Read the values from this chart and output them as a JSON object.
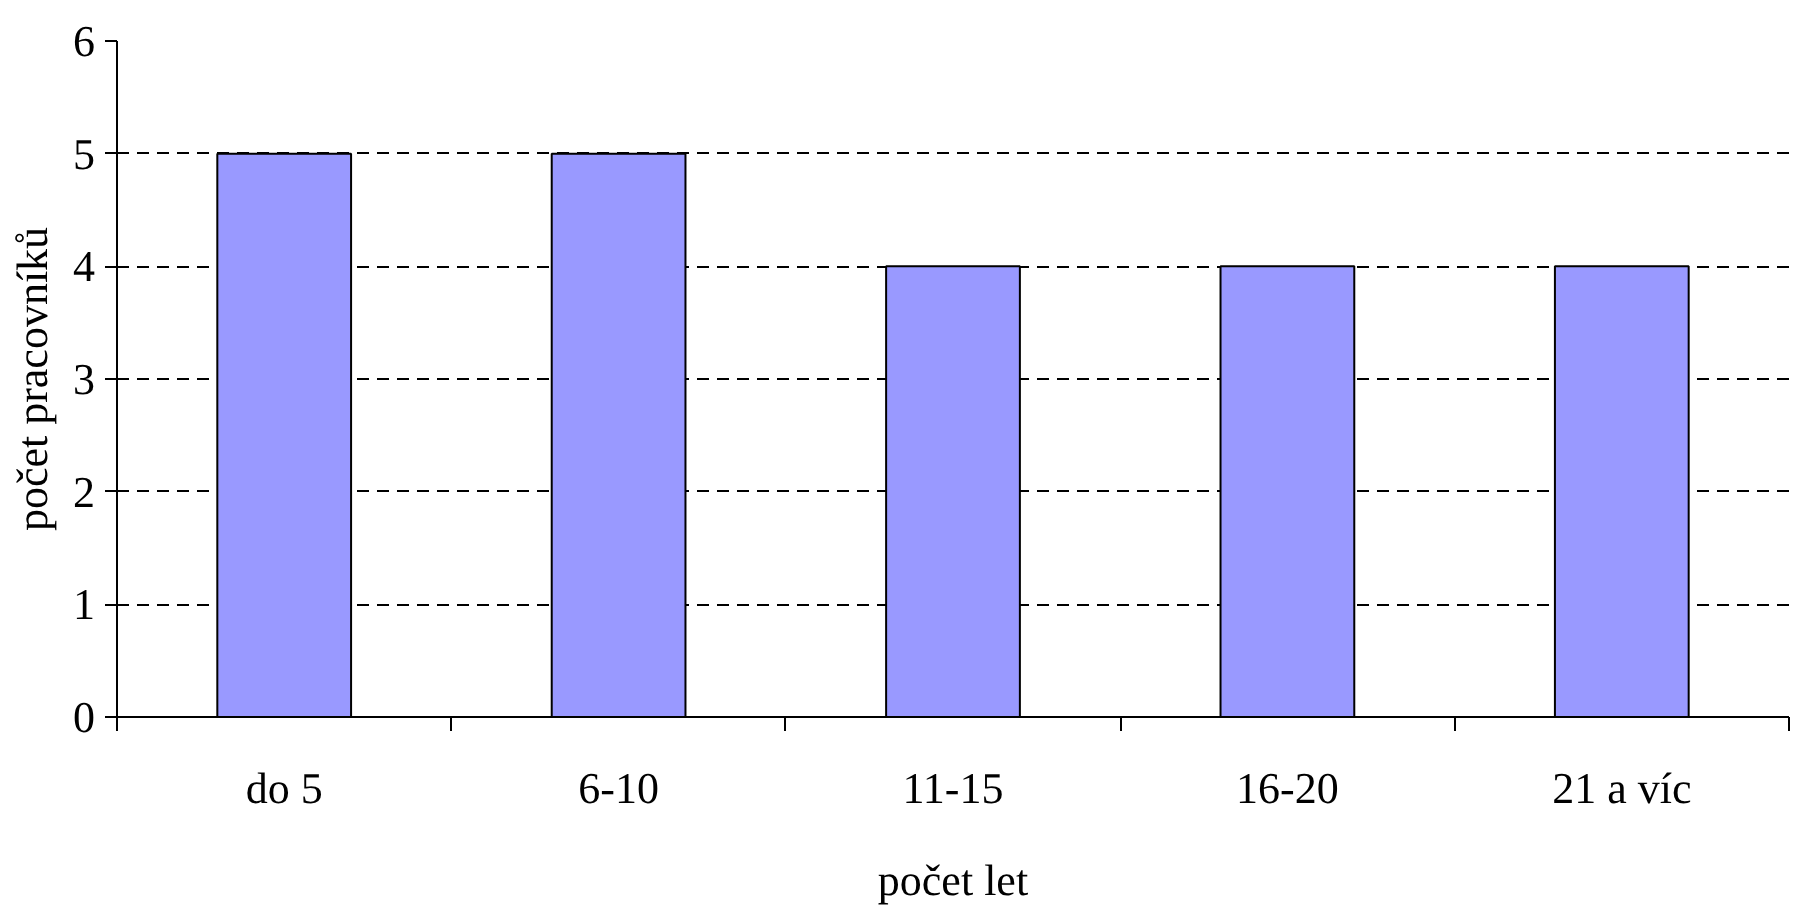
{
  "chart_data": {
    "type": "bar",
    "xlabel": "počet let",
    "ylabel": "počet pracovníků",
    "categories": [
      "do 5",
      "6-10",
      "11-15",
      "16-20",
      "21 a víc"
    ],
    "values": [
      5,
      5,
      4,
      4,
      4
    ],
    "color": "#9999ff",
    "ylim": [
      0,
      6
    ],
    "yticks": [
      0,
      1,
      2,
      3,
      4,
      5,
      6
    ],
    "grid": "y"
  }
}
